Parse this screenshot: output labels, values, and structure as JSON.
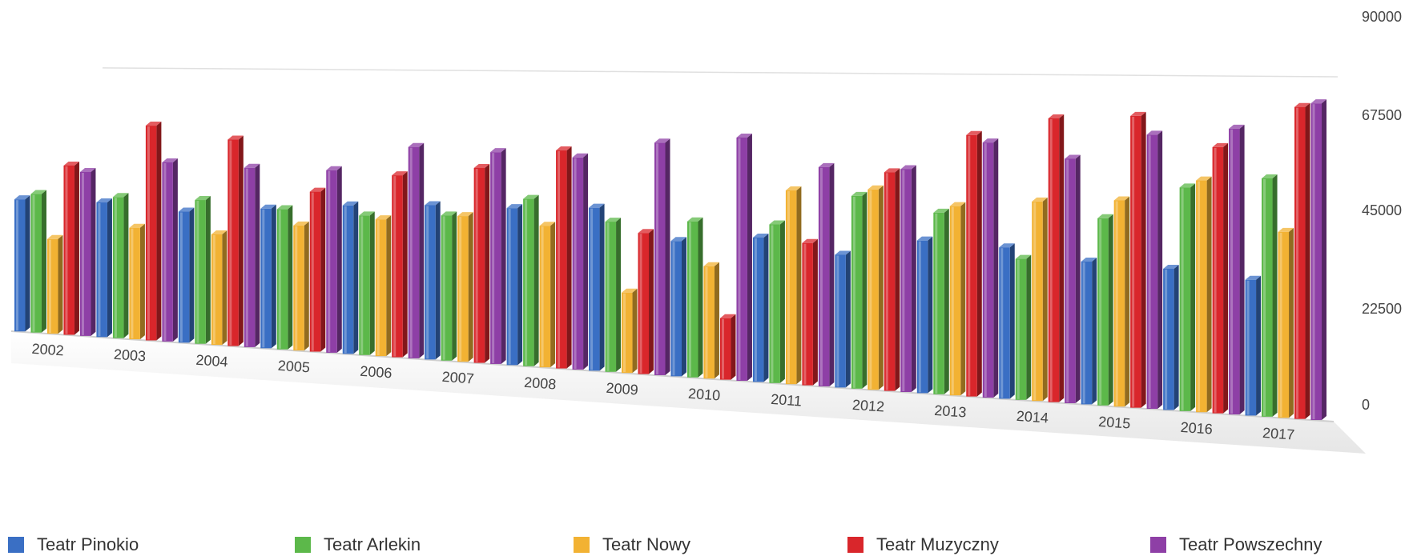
{
  "chart_data": {
    "type": "bar",
    "categories": [
      "2002",
      "2003",
      "2004",
      "2005",
      "2006",
      "2007",
      "2008",
      "2009",
      "2010",
      "2011",
      "2012",
      "2013",
      "2014",
      "2015",
      "2016",
      "2017"
    ],
    "yticks": [
      "90000",
      "67500",
      "45000",
      "22500",
      "0"
    ],
    "ylim": [
      0,
      90000
    ],
    "grid": false,
    "legend_position": "bottom",
    "series": [
      {
        "name": "Teatr Pinokio",
        "color": "#3a6fc4",
        "values": [
          45000,
          45000,
          43000,
          45000,
          47000,
          48000,
          48000,
          49000,
          40000,
          42000,
          38000,
          43000,
          42000,
          39000,
          38000,
          36000
        ]
      },
      {
        "name": "Teatr Arlekin",
        "color": "#5cb84a",
        "values": [
          47000,
          47000,
          47000,
          45000,
          44000,
          45000,
          51000,
          45000,
          46000,
          46000,
          55000,
          51000,
          39000,
          51000,
          60000,
          63000
        ]
      },
      {
        "name": "Teatr Nowy",
        "color": "#f2b233",
        "values": [
          32000,
          37000,
          36000,
          40000,
          43000,
          45000,
          43000,
          24000,
          33000,
          56000,
          57000,
          53000,
          55000,
          56000,
          62000,
          49000
        ]
      },
      {
        "name": "Teatr Muzyczny",
        "color": "#d9262b",
        "values": [
          57000,
          71000,
          67000,
          51000,
          57000,
          60000,
          66000,
          42000,
          18000,
          41000,
          62000,
          73000,
          78000,
          79000,
          71000,
          82000
        ]
      },
      {
        "name": "Teatr Powszechny",
        "color": "#8e3fa6",
        "values": [
          55000,
          59000,
          58000,
          58000,
          66000,
          65000,
          64000,
          69000,
          71000,
          63000,
          63000,
          71000,
          67000,
          74000,
          76000,
          83000
        ]
      }
    ]
  }
}
